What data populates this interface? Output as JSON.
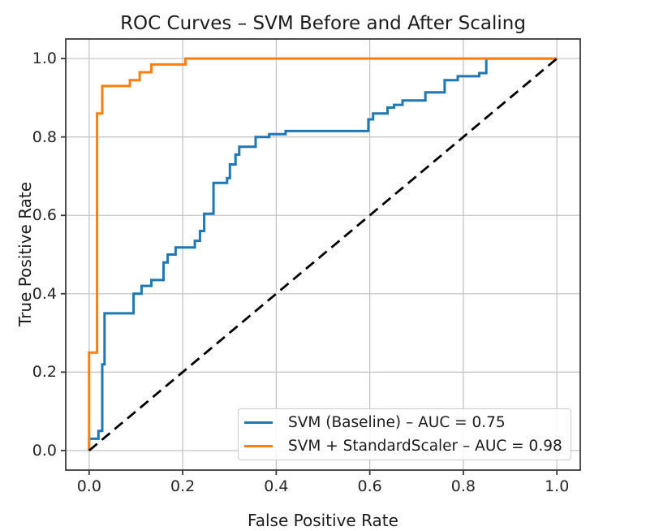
{
  "chart_data": {
    "type": "line",
    "title": "ROC Curves – SVM Before and After Scaling",
    "xlabel": "False Positive Rate",
    "ylabel": "True Positive Rate",
    "xlim": [
      -0.05,
      1.05
    ],
    "ylim": [
      -0.05,
      1.05
    ],
    "xticks": [
      0.0,
      0.2,
      0.4,
      0.6,
      0.8,
      1.0
    ],
    "yticks": [
      0.0,
      0.2,
      0.4,
      0.6,
      0.8,
      1.0
    ],
    "tick_labels_x": [
      "0.0",
      "0.2",
      "0.4",
      "0.6",
      "0.8",
      "1.0"
    ],
    "tick_labels_y": [
      "0.0",
      "0.2",
      "0.4",
      "0.6",
      "0.8",
      "1.0"
    ],
    "grid": true,
    "grid_color": "#c6c6c6",
    "frame_color": "#3a3a3a",
    "legend_position": "lower right",
    "series": [
      {
        "id": "roc-baseline",
        "label": "SVM (Baseline) – AUC = 0.75",
        "auc": 0.75,
        "color": "#1f77b4",
        "style": "solid",
        "points": [
          [
            0.0,
            0.0
          ],
          [
            0.0,
            0.03
          ],
          [
            0.02,
            0.03
          ],
          [
            0.02,
            0.05
          ],
          [
            0.028,
            0.05
          ],
          [
            0.028,
            0.22
          ],
          [
            0.033,
            0.22
          ],
          [
            0.033,
            0.35
          ],
          [
            0.095,
            0.35
          ],
          [
            0.095,
            0.4
          ],
          [
            0.112,
            0.4
          ],
          [
            0.112,
            0.42
          ],
          [
            0.133,
            0.42
          ],
          [
            0.133,
            0.435
          ],
          [
            0.159,
            0.435
          ],
          [
            0.159,
            0.48
          ],
          [
            0.168,
            0.48
          ],
          [
            0.168,
            0.5
          ],
          [
            0.185,
            0.5
          ],
          [
            0.185,
            0.518
          ],
          [
            0.226,
            0.518
          ],
          [
            0.226,
            0.535
          ],
          [
            0.237,
            0.535
          ],
          [
            0.237,
            0.56
          ],
          [
            0.246,
            0.56
          ],
          [
            0.246,
            0.604
          ],
          [
            0.266,
            0.604
          ],
          [
            0.266,
            0.683
          ],
          [
            0.295,
            0.683
          ],
          [
            0.295,
            0.695
          ],
          [
            0.301,
            0.695
          ],
          [
            0.301,
            0.73
          ],
          [
            0.313,
            0.73
          ],
          [
            0.313,
            0.755
          ],
          [
            0.321,
            0.755
          ],
          [
            0.321,
            0.775
          ],
          [
            0.356,
            0.775
          ],
          [
            0.356,
            0.8
          ],
          [
            0.385,
            0.8
          ],
          [
            0.385,
            0.807
          ],
          [
            0.42,
            0.807
          ],
          [
            0.42,
            0.815
          ],
          [
            0.597,
            0.815
          ],
          [
            0.597,
            0.845
          ],
          [
            0.607,
            0.845
          ],
          [
            0.607,
            0.86
          ],
          [
            0.638,
            0.86
          ],
          [
            0.638,
            0.875
          ],
          [
            0.652,
            0.875
          ],
          [
            0.652,
            0.882
          ],
          [
            0.67,
            0.882
          ],
          [
            0.67,
            0.893
          ],
          [
            0.719,
            0.893
          ],
          [
            0.719,
            0.914
          ],
          [
            0.76,
            0.914
          ],
          [
            0.76,
            0.945
          ],
          [
            0.788,
            0.945
          ],
          [
            0.788,
            0.955
          ],
          [
            0.834,
            0.955
          ],
          [
            0.834,
            0.963
          ],
          [
            0.849,
            0.963
          ],
          [
            0.849,
            1.0
          ],
          [
            1.0,
            1.0
          ]
        ]
      },
      {
        "id": "roc-scaled",
        "label": "SVM + StandardScaler – AUC = 0.98",
        "auc": 0.98,
        "color": "#ff7f0e",
        "style": "solid",
        "points": [
          [
            0.0,
            0.0
          ],
          [
            0.0,
            0.25
          ],
          [
            0.017,
            0.25
          ],
          [
            0.017,
            0.86
          ],
          [
            0.028,
            0.86
          ],
          [
            0.028,
            0.93
          ],
          [
            0.087,
            0.93
          ],
          [
            0.087,
            0.945
          ],
          [
            0.108,
            0.945
          ],
          [
            0.108,
            0.965
          ],
          [
            0.133,
            0.965
          ],
          [
            0.133,
            0.985
          ],
          [
            0.206,
            0.985
          ],
          [
            0.206,
            1.0
          ],
          [
            1.0,
            1.0
          ]
        ]
      },
      {
        "id": "chance-diagonal",
        "label": "",
        "color": "#000000",
        "style": "dashed",
        "points": [
          [
            0.0,
            0.0
          ],
          [
            1.0,
            1.0
          ]
        ]
      }
    ]
  }
}
